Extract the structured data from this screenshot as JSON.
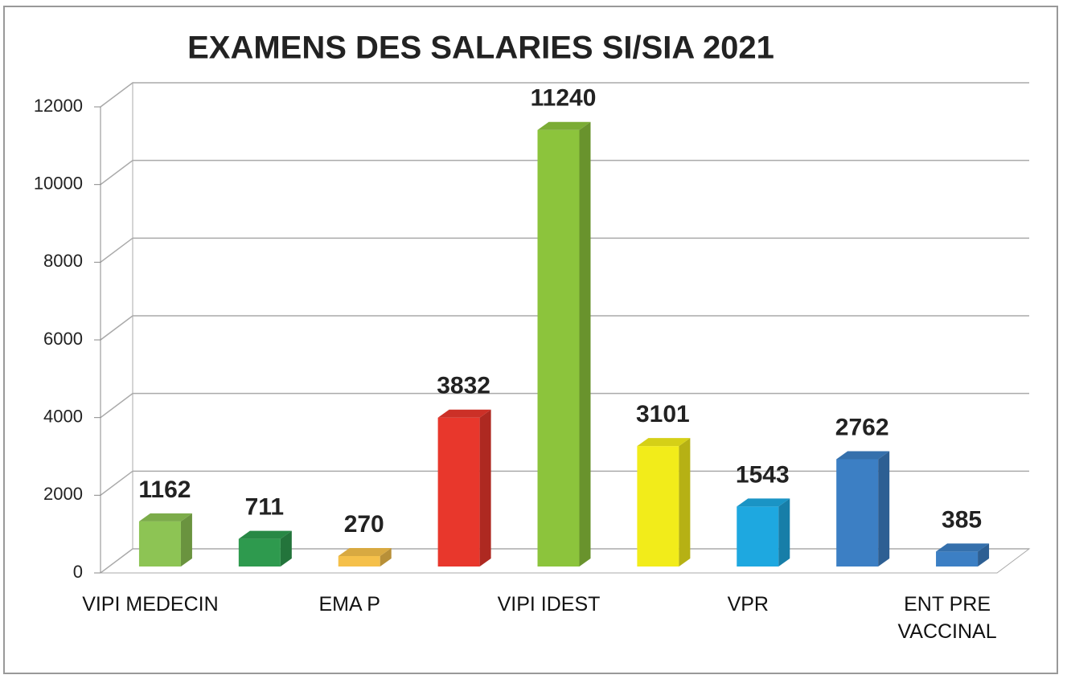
{
  "chart_data": {
    "type": "bar3d",
    "title": "EXAMENS DES  SALARIES SI/SIA 2021",
    "categories": [
      "VIPI MEDECIN",
      null,
      "EMA P",
      null,
      "VIPI IDEST",
      null,
      "VPR",
      null,
      "ENT PRE VACCINAL"
    ],
    "values": [
      1162,
      711,
      270,
      3832,
      11240,
      3101,
      1543,
      2762,
      385
    ],
    "colors": [
      "#8dc454",
      "#2e9a4e",
      "#f5c04a",
      "#e8372c",
      "#8cc43c",
      "#f2ec1a",
      "#1ea8e0",
      "#3c7fc4",
      "#3c7fc4"
    ],
    "ylim": [
      0,
      12000
    ],
    "yticks": [
      0,
      2000,
      4000,
      6000,
      8000,
      10000,
      12000
    ],
    "grid": true
  }
}
